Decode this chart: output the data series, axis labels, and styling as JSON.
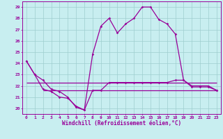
{
  "xlabel": "Windchill (Refroidissement éolien,°C)",
  "background_color": "#c8eef0",
  "grid_color": "#9ecece",
  "line_color": "#990099",
  "ylim": [
    19.5,
    29.5
  ],
  "xlim": [
    -0.5,
    23.5
  ],
  "yticks": [
    20,
    21,
    22,
    23,
    24,
    25,
    26,
    27,
    28,
    29
  ],
  "xticks": [
    0,
    1,
    2,
    3,
    4,
    5,
    6,
    7,
    8,
    9,
    10,
    11,
    12,
    13,
    14,
    15,
    16,
    17,
    18,
    19,
    20,
    21,
    22,
    23
  ],
  "temperature": [
    24.2,
    23.0,
    22.5,
    21.7,
    21.5,
    21.0,
    20.1,
    19.85,
    24.8,
    27.3,
    28.0,
    26.7,
    27.5,
    28.0,
    29.0,
    29.0,
    27.9,
    27.5,
    26.6,
    22.5,
    22.0,
    22.0,
    22.0,
    21.6
  ],
  "windchill": [
    24.2,
    23.0,
    21.7,
    21.5,
    21.0,
    20.9,
    20.2,
    19.85,
    21.6,
    21.6,
    22.3,
    22.3,
    22.3,
    22.3,
    22.3,
    22.3,
    22.3,
    22.3,
    22.5,
    22.5,
    21.9,
    21.9,
    21.9,
    21.6
  ],
  "hline1_y": 22.3,
  "hline1_xstart": 0,
  "hline1_xend": 23,
  "hline2_y": 21.6,
  "hline2_xstart": 2,
  "hline2_xend": 23
}
